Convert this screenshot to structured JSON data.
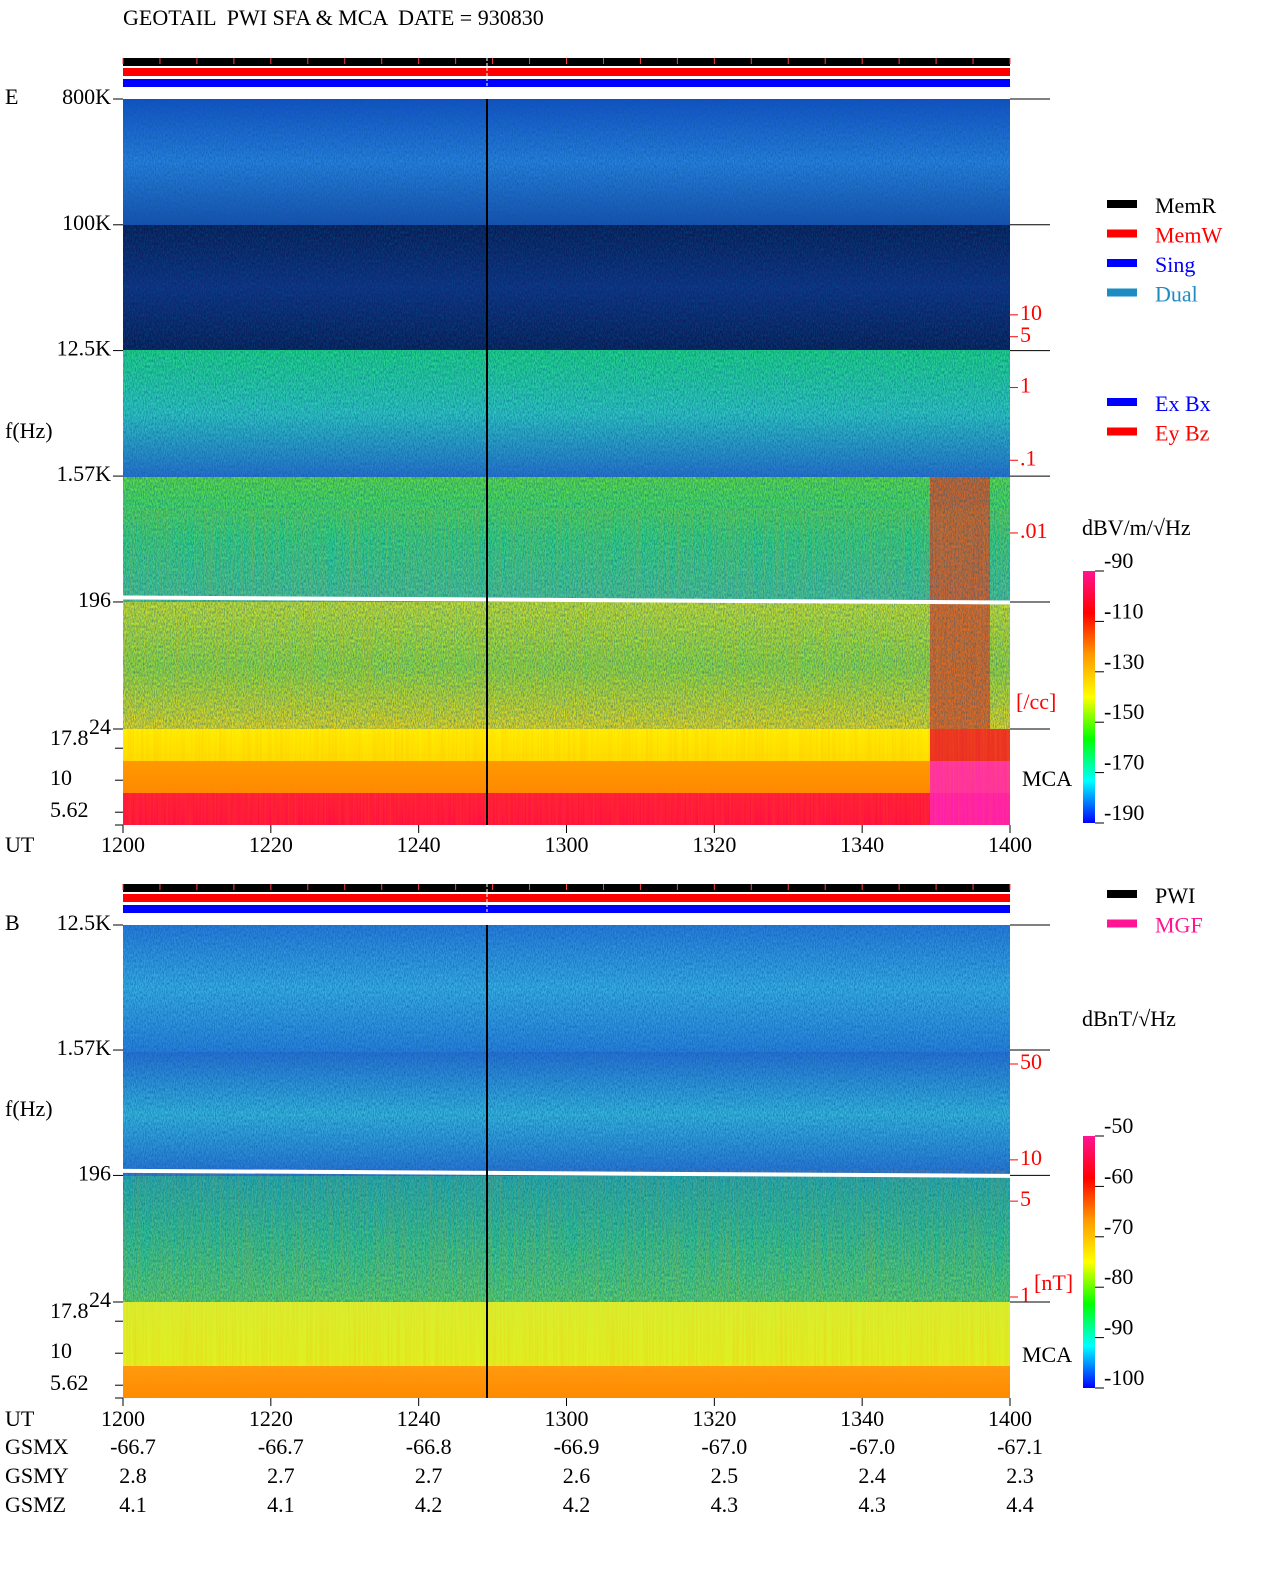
{
  "title": "GEOTAIL  PWI SFA & MCA  DATE = 930830",
  "chart_data": [
    {
      "type": "spectrogram",
      "panel": "E",
      "ylabel": "f(Hz)",
      "xlabel": "UT",
      "log_scale": true,
      "xlim": [
        0,
        120
      ],
      "xticks": [
        {
          "value": 0,
          "label": "1200"
        },
        {
          "value": 20,
          "label": "1220"
        },
        {
          "value": 40,
          "label": "1240"
        },
        {
          "value": 60,
          "label": "1300"
        },
        {
          "value": 80,
          "label": "1320"
        },
        {
          "value": 100,
          "label": "1340"
        },
        {
          "value": 120,
          "label": "1400"
        }
      ],
      "ylim": [
        24,
        800000
      ],
      "yticks": [
        {
          "value": 800000,
          "label": "800K"
        },
        {
          "value": 100000,
          "label": "100K"
        },
        {
          "value": 12500,
          "label": "12.5K"
        },
        {
          "value": 1570,
          "label": "1.57K"
        },
        196,
        24
      ],
      "mca_label": "MCA",
      "mca_ticks": [
        17.8,
        10,
        5.62
      ],
      "density_label": "[/cc]",
      "density_lim": [
        0.008,
        16
      ],
      "density_ticks": [
        10,
        5,
        1,
        {
          "value": 0.1,
          "label": ".1"
        },
        {
          "value": 0.01,
          "label": ".01"
        }
      ],
      "colorbar_label": "dBV/m/√Hz",
      "colorbar_lim": [
        -190,
        -90
      ],
      "colorbar_ticks": [
        -90,
        -110,
        -130,
        -150,
        -170,
        -190
      ],
      "colorbar_colors": [
        "#ff1493",
        "#ff0000",
        "#ff9900",
        "#ffff00",
        "#00ff00",
        "#00ffff",
        "#0000ff"
      ],
      "legend": [
        [
          {
            "name": "MemR",
            "color": "#000000"
          },
          {
            "name": "MemW",
            "color": "#ff0000"
          },
          {
            "name": "Sing",
            "color": "#0000ff"
          },
          {
            "name": "Dual",
            "color": "#1e8bc3"
          }
        ],
        [
          {
            "name": "Ex Bx",
            "color": "#0000ff"
          },
          {
            "name": "Ey Bz",
            "color": "#ff0000"
          }
        ]
      ]
    },
    {
      "type": "spectrogram",
      "panel": "B",
      "ylabel": "f(Hz)",
      "xlabel": "UT",
      "log_scale": true,
      "xlim": [
        0,
        120
      ],
      "xticks": [
        {
          "value": 0,
          "label": "1200"
        },
        {
          "value": 20,
          "label": "1220"
        },
        {
          "value": 40,
          "label": "1240"
        },
        {
          "value": 60,
          "label": "1300"
        },
        {
          "value": 80,
          "label": "1320"
        },
        {
          "value": 100,
          "label": "1340"
        },
        {
          "value": 120,
          "label": "1400"
        }
      ],
      "ylim": [
        24,
        12500
      ],
      "yticks": [
        {
          "value": 12500,
          "label": "12.5K"
        },
        {
          "value": 1570,
          "label": "1.57K"
        },
        196,
        24
      ],
      "mca_label": "MCA",
      "mca_ticks": [
        17.8,
        10,
        5.62
      ],
      "density_label": "[nT]",
      "density_lim": [
        1,
        50
      ],
      "density_ticks": [
        50,
        10,
        5,
        1
      ],
      "colorbar_label": "dBnT/√Hz",
      "colorbar_lim": [
        -100,
        -50
      ],
      "colorbar_ticks": [
        -50,
        -60,
        -70,
        -80,
        -90,
        -100
      ],
      "colorbar_colors": [
        "#ff1493",
        "#ff0000",
        "#ff9900",
        "#ffff00",
        "#00ff00",
        "#00ffff",
        "#0000ff"
      ],
      "legend": [
        [
          {
            "name": "PWI",
            "color": "#000000"
          },
          {
            "name": "MGF",
            "color": "#ff1493"
          }
        ]
      ]
    }
  ],
  "ephemeris": [
    {
      "label": "GSMX",
      "values": [
        "-66.7",
        "-66.7",
        "-66.8",
        "-66.9",
        "-67.0",
        "-67.0",
        "-67.1"
      ]
    },
    {
      "label": "GSMY",
      "values": [
        "2.8",
        "2.7",
        "2.7",
        "2.6",
        "2.5",
        "2.4",
        "2.3"
      ]
    },
    {
      "label": "GSMZ",
      "values": [
        "4.1",
        "4.1",
        "4.2",
        "4.2",
        "4.3",
        "4.3",
        "4.4"
      ]
    }
  ]
}
